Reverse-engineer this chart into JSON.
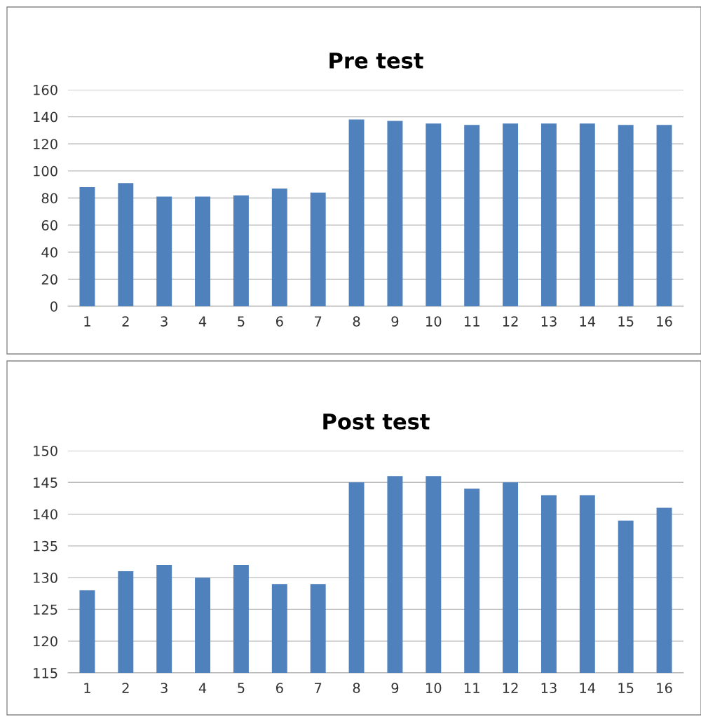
{
  "chart_data": [
    {
      "type": "bar",
      "title": "Pre test",
      "categories": [
        "1",
        "2",
        "3",
        "4",
        "5",
        "6",
        "7",
        "8",
        "9",
        "10",
        "11",
        "12",
        "13",
        "14",
        "15",
        "16"
      ],
      "series": [
        {
          "color": "#4f81bd",
          "values": [
            88,
            91,
            81,
            81,
            82,
            87,
            84,
            138,
            137,
            135,
            134,
            135,
            135,
            135,
            134,
            134
          ]
        }
      ],
      "ylim": [
        0,
        160
      ],
      "yticks": [
        0,
        20,
        40,
        60,
        80,
        100,
        120,
        140,
        160
      ],
      "grid": "y"
    },
    {
      "type": "bar",
      "title": "Post test",
      "categories": [
        "1",
        "2",
        "3",
        "4",
        "5",
        "6",
        "7",
        "8",
        "9",
        "10",
        "11",
        "12",
        "13",
        "14",
        "15",
        "16"
      ],
      "series": [
        {
          "color": "#4f81bd",
          "values": [
            128,
            131,
            132,
            130,
            132,
            129,
            129,
            145,
            146,
            146,
            144,
            145,
            143,
            143,
            139,
            141
          ]
        }
      ],
      "ylim": [
        115,
        150
      ],
      "yticks": [
        115,
        120,
        125,
        130,
        135,
        140,
        145,
        150
      ],
      "grid": "y"
    }
  ]
}
